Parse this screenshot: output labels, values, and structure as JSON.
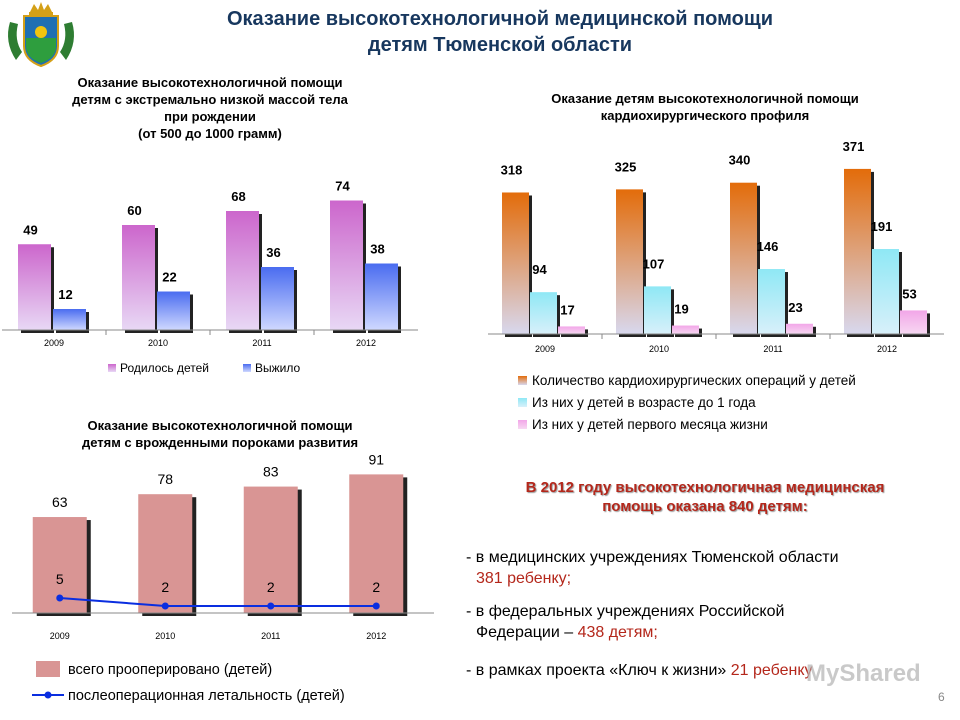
{
  "header": {
    "title_line1": "Оказание высокотехнологичной медицинской помощи",
    "title_line2": "детям Тюменской области"
  },
  "page_number": "6",
  "colors": {
    "title": "#17375e",
    "born": "#cc66cc",
    "survived": "#4a6cf0",
    "operations": "#e36c0a",
    "under_one": "#8fe8f5",
    "first_month": "#f2a6e8",
    "operated_total": "#d99594",
    "lethality_line": "#0a2ee0",
    "accent_text": "#b4271b"
  },
  "chart_data": [
    {
      "type": "bar",
      "title_lines": [
        "Оказание высокотехнологичной помощи",
        "детям с экстремально низкой массой тела",
        "при рождении",
        "(от 500 до 1000 грамм)"
      ],
      "categories": [
        "2009",
        "2010",
        "2011",
        "2012"
      ],
      "series": [
        {
          "name": "Родилось детей",
          "values": [
            49,
            60,
            68,
            74
          ]
        },
        {
          "name": "Выжило",
          "values": [
            12,
            22,
            36,
            38
          ]
        }
      ],
      "ylim": [
        0,
        80
      ],
      "legend": "bottom",
      "grid": false
    },
    {
      "type": "bar",
      "title_lines": [
        "Оказание детям высокотехнологичной помощи",
        "кардиохирургического профиля"
      ],
      "categories": [
        "2009",
        "2010",
        "2011",
        "2012"
      ],
      "series": [
        {
          "name": "Количество кардиохирургических операций у детей",
          "values": [
            318,
            325,
            340,
            371
          ]
        },
        {
          "name": "Из них у детей в возрасте до 1 года",
          "values": [
            94,
            107,
            146,
            191
          ]
        },
        {
          "name": "Из них у детей первого месяца жизни",
          "values": [
            17,
            19,
            23,
            53
          ]
        }
      ],
      "ylim": [
        0,
        400
      ],
      "legend": "bottom",
      "grid": false
    },
    {
      "type": "bar",
      "title_lines": [
        "Оказание высокотехнологичной помощи",
        "детям с врожденными пороками развития"
      ],
      "categories": [
        "2009",
        "2010",
        "2011",
        "2012"
      ],
      "series": [
        {
          "name": "всего прооперировано  (детей)",
          "type": "bar",
          "values": [
            63,
            78,
            83,
            91
          ]
        },
        {
          "name": "послеоперационная  летальность  (детей)",
          "type": "line",
          "values": [
            5,
            2,
            2,
            2
          ]
        }
      ],
      "ylim": [
        0,
        100
      ],
      "legend": "bottom",
      "grid": false
    }
  ],
  "summary": {
    "heading_line1": "В 2012 году высокотехнологичная медицинская",
    "heading_line2": "помощь оказана 840 детям:",
    "items": [
      {
        "line1": "- в медицинских учреждениях Тюменской области",
        "line2": "381 ребенку;"
      },
      {
        "line1": "- в федеральных учреждениях  Российской",
        "line2a": "Федерации – ",
        "line2b": "438 детям;"
      },
      {
        "line1a": "- в рамках проекта «Ключ к жизни» ",
        "line1b": "21 ребенку"
      }
    ]
  },
  "watermark": "MyShared"
}
